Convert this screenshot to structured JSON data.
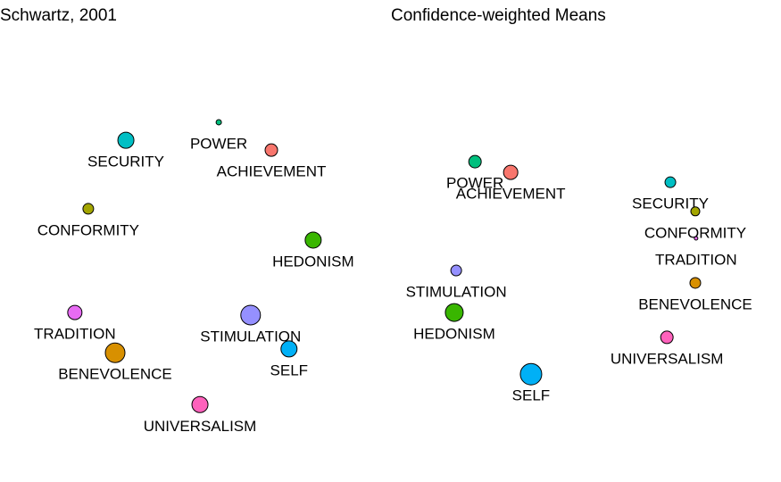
{
  "chart_data": [
    {
      "type": "scatter",
      "title": "Schwartz, 2001",
      "xlim": [
        0,
        100
      ],
      "ylim": [
        0,
        100
      ],
      "categories": [
        "POWER",
        "ACHIEVEMENT",
        "SECURITY",
        "CONFORMITY",
        "HEDONISM",
        "TRADITION",
        "STIMULATION",
        "BENEVOLENCE",
        "SELF",
        "UNIVERSALISM"
      ],
      "x": [
        57,
        70.7,
        32.8,
        23,
        81.6,
        19.5,
        65.3,
        30,
        75.3,
        52.1
      ],
      "y": [
        79.8,
        73.3,
        75.6,
        59.6,
        52.3,
        35.4,
        34.8,
        26,
        26.9,
        13.9
      ],
      "sizes": [
        3,
        7,
        9,
        6,
        9,
        8,
        11,
        11,
        9,
        9
      ],
      "colors": [
        "#00BF7D",
        "#F8766D",
        "#00BFC4",
        "#A3A500",
        "#39B600",
        "#E76BF3",
        "#9590FF",
        "#D89000",
        "#00B0F6",
        "#FF62BC"
      ]
    },
    {
      "type": "scatter",
      "title": "Confidence-weighted Means",
      "xlim": [
        0,
        100
      ],
      "ylim": [
        0,
        100
      ],
      "categories": [
        "POWER",
        "ACHIEVEMENT",
        "SECURITY",
        "CONFORMITY",
        "TRADITION",
        "BENEVOLENCE",
        "UNIVERSALISM",
        "STIMULATION",
        "HEDONISM",
        "SELF"
      ],
      "x": [
        21.9,
        31.2,
        72.8,
        79.3,
        79.5,
        79.3,
        71.9,
        17,
        16.5,
        36.5
      ],
      "y": [
        70.6,
        68.1,
        65.8,
        59,
        52.7,
        42.3,
        29.6,
        45.2,
        35.4,
        21
      ],
      "sizes": [
        7,
        8,
        6,
        5,
        2,
        6,
        7,
        6,
        10,
        12
      ],
      "colors": [
        "#00BF7D",
        "#F8766D",
        "#00BFC4",
        "#A3A500",
        "#E76BF3",
        "#D89000",
        "#FF62BC",
        "#9590FF",
        "#39B600",
        "#00B0F6"
      ]
    }
  ]
}
